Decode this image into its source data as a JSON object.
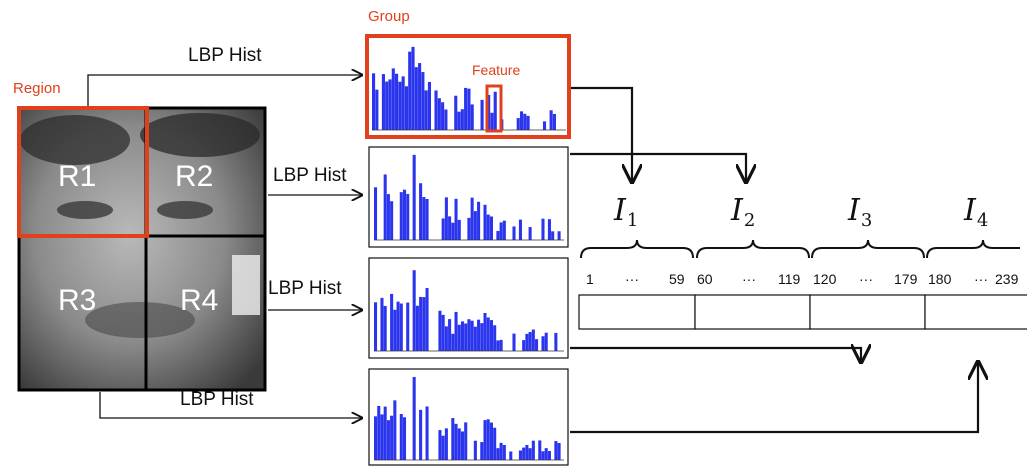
{
  "labels": {
    "group": "Group",
    "region": "Region",
    "feature": "Feature",
    "lbp_hist": "LBP Hist"
  },
  "regions": [
    "R1",
    "R2",
    "R3",
    "R4"
  ],
  "index_groups": [
    {
      "symbol": "I",
      "sub": "1",
      "start": "1",
      "dots": "···",
      "end": "59"
    },
    {
      "symbol": "I",
      "sub": "2",
      "start": "60",
      "dots": "···",
      "end": "119"
    },
    {
      "symbol": "I",
      "sub": "3",
      "start": "120",
      "dots": "···",
      "end": "179"
    },
    {
      "symbol": "I",
      "sub": "4",
      "start": "180",
      "dots": "···",
      "end": "239"
    }
  ],
  "colors": {
    "highlight": "#e0401c",
    "bars": "#2b35ee",
    "arrows": "#111111"
  }
}
